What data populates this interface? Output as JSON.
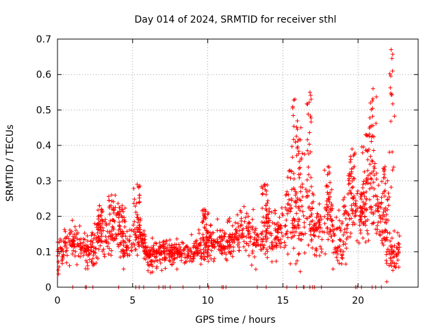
{
  "chart_data": {
    "type": "scatter",
    "title": "Day 014 of 2024, SRMTID for receiver sthl",
    "xlabel": "GPS time / hours",
    "ylabel": "SRMTID / TECUs",
    "xlim": [
      0,
      24
    ],
    "ylim": [
      0,
      0.7
    ],
    "xticks": [
      0,
      5,
      10,
      15,
      20
    ],
    "yticks": [
      0,
      0.1,
      0.2,
      0.3,
      0.4,
      0.5,
      0.6,
      0.7
    ],
    "xtick_labels": [
      "0",
      "5",
      "10",
      "15",
      "20"
    ],
    "ytick_labels": [
      "0",
      "0.1",
      "0.2",
      "0.3",
      "0.4",
      "0.5",
      "0.6",
      "0.7"
    ],
    "grid": true,
    "marker": "+",
    "marker_color": "#ff0000",
    "series": [
      {
        "name": "SRMTID",
        "trend_x": [
          0,
          0.5,
          1,
          1.5,
          2,
          2.5,
          3,
          3.5,
          4,
          4.5,
          5,
          5.5,
          6,
          6.5,
          7,
          7.5,
          8,
          8.5,
          9,
          9.5,
          10,
          10.5,
          11,
          11.5,
          12,
          12.5,
          13,
          13.5,
          14,
          14.5,
          15,
          15.5,
          16,
          16.5,
          17,
          17.5,
          18,
          18.5,
          19,
          19.5,
          20,
          20.5,
          21,
          21.5,
          22,
          22.5,
          22.8
        ],
        "trend_y": [
          0.09,
          0.12,
          0.13,
          0.11,
          0.1,
          0.11,
          0.15,
          0.13,
          0.17,
          0.09,
          0.14,
          0.15,
          0.09,
          0.09,
          0.1,
          0.1,
          0.1,
          0.1,
          0.1,
          0.11,
          0.12,
          0.13,
          0.12,
          0.13,
          0.15,
          0.17,
          0.14,
          0.13,
          0.16,
          0.13,
          0.17,
          0.22,
          0.16,
          0.22,
          0.16,
          0.18,
          0.19,
          0.12,
          0.15,
          0.24,
          0.2,
          0.22,
          0.29,
          0.18,
          0.11,
          0.08,
          0.12
        ],
        "spread": [
          0.04,
          0.05,
          0.04,
          0.04,
          0.04,
          0.04,
          0.05,
          0.05,
          0.05,
          0.04,
          0.06,
          0.04,
          0.03,
          0.03,
          0.03,
          0.03,
          0.03,
          0.03,
          0.03,
          0.04,
          0.04,
          0.04,
          0.04,
          0.05,
          0.05,
          0.05,
          0.05,
          0.06,
          0.07,
          0.06,
          0.06,
          0.1,
          0.12,
          0.1,
          0.08,
          0.07,
          0.07,
          0.05,
          0.09,
          0.07,
          0.06,
          0.09,
          0.1,
          0.08,
          0.05,
          0.03,
          0.04
        ],
        "peaks": [
          {
            "x": 2.8,
            "y": 0.23
          },
          {
            "x": 3.6,
            "y": 0.26
          },
          {
            "x": 4.3,
            "y": 0.23
          },
          {
            "x": 5.3,
            "y": 0.29
          },
          {
            "x": 9.8,
            "y": 0.22
          },
          {
            "x": 13.8,
            "y": 0.29
          },
          {
            "x": 15.8,
            "y": 0.53
          },
          {
            "x": 16.2,
            "y": 0.45
          },
          {
            "x": 16.8,
            "y": 0.55
          },
          {
            "x": 18.0,
            "y": 0.34
          },
          {
            "x": 19.6,
            "y": 0.39
          },
          {
            "x": 20.5,
            "y": 0.43
          },
          {
            "x": 21.0,
            "y": 0.56
          },
          {
            "x": 21.8,
            "y": 0.34
          },
          {
            "x": 22.2,
            "y": 0.67
          }
        ]
      }
    ]
  }
}
